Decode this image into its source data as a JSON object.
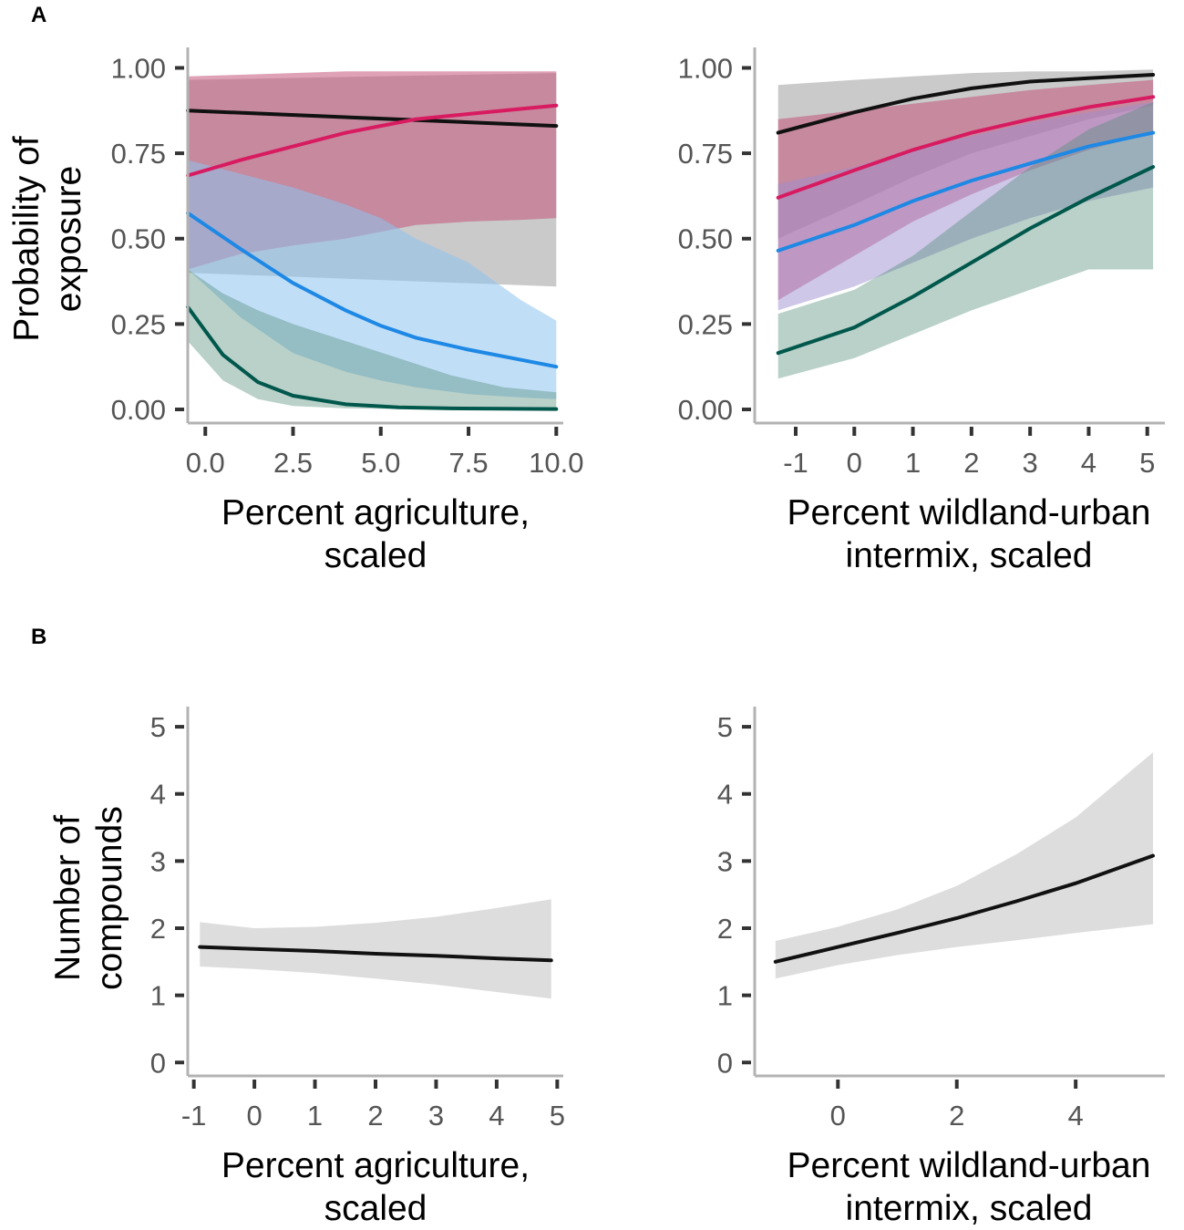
{
  "panel_labels": [
    "A",
    "B"
  ],
  "colors": {
    "black_series": "#111111",
    "pink_series": "#d81b60",
    "blue_series": "#1e88e5",
    "green_series": "#00574b",
    "axis": "#b3b3b3",
    "tick_label": "#555555",
    "ribbon_gray": "#bdbdbd"
  },
  "chart_data": [
    {
      "panel": "A",
      "type": "line",
      "ylabel": "Probability of exposure",
      "ylabel_lines": [
        "Probability of",
        "exposure"
      ],
      "xlabel": "Percent agriculture, scaled",
      "xlabel_lines": [
        "Percent agriculture,",
        "scaled"
      ],
      "xlim": [
        -0.5,
        10.2
      ],
      "ylim": [
        -0.04,
        1.06
      ],
      "x_ticks": [
        0,
        2.5,
        5,
        7.5,
        10
      ],
      "x_tick_labels": [
        "0.0",
        "2.5",
        "5.0",
        "7.5",
        "10.0"
      ],
      "y_ticks": [
        0,
        0.25,
        0.5,
        0.75,
        1
      ],
      "y_tick_labels": [
        "0.00",
        "0.25",
        "0.50",
        "0.75",
        "1.00"
      ],
      "grid": false,
      "series": [
        {
          "name": "gray",
          "color": "#111111",
          "band_color": "#bdbdbd",
          "band_opacity": 0.8,
          "x": [
            -0.5,
            10
          ],
          "y": [
            0.875,
            0.83
          ],
          "lower": [
            0.4,
            0.36
          ],
          "upper": [
            0.965,
            0.985
          ]
        },
        {
          "name": "pink",
          "color": "#d81b60",
          "band_color": "#c2547a",
          "band_opacity": 0.55,
          "x": [
            -0.5,
            1,
            2.5,
            4,
            5,
            6,
            7.5,
            9,
            10
          ],
          "y": [
            0.685,
            0.73,
            0.77,
            0.81,
            0.83,
            0.85,
            0.865,
            0.88,
            0.89
          ],
          "lower": [
            0.41,
            0.455,
            0.48,
            0.5,
            0.52,
            0.54,
            0.55,
            0.555,
            0.56
          ],
          "upper": [
            0.975,
            0.98,
            0.985,
            0.99,
            0.99,
            0.99,
            0.99,
            0.99,
            0.99
          ]
        },
        {
          "name": "blue",
          "color": "#1e88e5",
          "band_color": "#8ec2f0",
          "band_opacity": 0.55,
          "x": [
            -0.5,
            1,
            2.5,
            4,
            5,
            6,
            7.5,
            9,
            10
          ],
          "y": [
            0.575,
            0.47,
            0.37,
            0.29,
            0.245,
            0.21,
            0.175,
            0.145,
            0.125
          ],
          "lower": [
            0.41,
            0.27,
            0.165,
            0.11,
            0.085,
            0.065,
            0.045,
            0.035,
            0.03
          ],
          "upper": [
            0.73,
            0.69,
            0.65,
            0.6,
            0.56,
            0.5,
            0.43,
            0.32,
            0.26
          ]
        },
        {
          "name": "green",
          "color": "#00574b",
          "band_color": "#4f8c78",
          "band_opacity": 0.4,
          "x": [
            -0.5,
            0.5,
            1.5,
            2.5,
            4,
            5.5,
            7,
            8.5,
            10
          ],
          "y": [
            0.3,
            0.16,
            0.08,
            0.04,
            0.015,
            0.006,
            0.003,
            0.002,
            0.001
          ],
          "lower": [
            0.2,
            0.085,
            0.03,
            0.01,
            0.003,
            0.001,
            0.0,
            0.0,
            0.0
          ],
          "upper": [
            0.41,
            0.34,
            0.29,
            0.25,
            0.2,
            0.15,
            0.1,
            0.065,
            0.05
          ]
        }
      ]
    },
    {
      "panel": "A",
      "type": "line",
      "ylabel": "",
      "xlabel": "Percent wildland-urban intermix, scaled",
      "xlabel_lines": [
        "Percent wildland-urban",
        "intermix, scaled"
      ],
      "xlim": [
        -1.7,
        5.3
      ],
      "ylim": [
        -0.04,
        1.06
      ],
      "x_ticks": [
        -1,
        0,
        1,
        2,
        3,
        4,
        5
      ],
      "x_tick_labels": [
        "-1",
        "0",
        "1",
        "2",
        "3",
        "4",
        "5"
      ],
      "y_ticks": [
        0,
        0.25,
        0.5,
        0.75,
        1
      ],
      "y_tick_labels": [
        "0.00",
        "0.25",
        "0.50",
        "0.75",
        "1.00"
      ],
      "grid": false,
      "series": [
        {
          "name": "gray",
          "color": "#111111",
          "band_color": "#bdbdbd",
          "band_opacity": 0.8,
          "x": [
            -1.3,
            0,
            1,
            2,
            3,
            4,
            5.1
          ],
          "y": [
            0.81,
            0.87,
            0.91,
            0.94,
            0.96,
            0.97,
            0.98
          ],
          "lower": [
            0.5,
            0.6,
            0.68,
            0.75,
            0.8,
            0.85,
            0.89
          ],
          "upper": [
            0.95,
            0.965,
            0.975,
            0.985,
            0.99,
            0.99,
            0.995
          ]
        },
        {
          "name": "pink",
          "color": "#d81b60",
          "band_color": "#c2547a",
          "band_opacity": 0.55,
          "x": [
            -1.3,
            0,
            1,
            2,
            3,
            4,
            5.1
          ],
          "y": [
            0.62,
            0.7,
            0.76,
            0.81,
            0.85,
            0.885,
            0.915
          ],
          "lower": [
            0.32,
            0.45,
            0.55,
            0.63,
            0.7,
            0.76,
            0.81
          ],
          "upper": [
            0.85,
            0.875,
            0.895,
            0.915,
            0.935,
            0.95,
            0.965
          ]
        },
        {
          "name": "blue",
          "color": "#1e88e5",
          "band_color": "#9d8fcf",
          "band_opacity": 0.5,
          "x": [
            -1.3,
            0,
            1,
            2,
            3,
            4,
            5.1
          ],
          "y": [
            0.465,
            0.54,
            0.61,
            0.67,
            0.72,
            0.77,
            0.81
          ],
          "lower": [
            0.29,
            0.36,
            0.43,
            0.5,
            0.56,
            0.61,
            0.65
          ],
          "upper": [
            0.66,
            0.71,
            0.76,
            0.8,
            0.84,
            0.87,
            0.9
          ]
        },
        {
          "name": "green",
          "color": "#00574b",
          "band_color": "#4f8c78",
          "band_opacity": 0.4,
          "x": [
            -1.3,
            0,
            1,
            2,
            3,
            4,
            5.1
          ],
          "y": [
            0.165,
            0.24,
            0.33,
            0.43,
            0.53,
            0.62,
            0.71
          ],
          "lower": [
            0.09,
            0.15,
            0.22,
            0.29,
            0.35,
            0.41,
            0.41
          ],
          "upper": [
            0.28,
            0.35,
            0.45,
            0.58,
            0.71,
            0.82,
            0.9
          ]
        }
      ]
    },
    {
      "panel": "B",
      "type": "line",
      "ylabel": "Number of compounds",
      "ylabel_lines": [
        "Number of",
        "compounds"
      ],
      "xlabel": "Percent agriculture, scaled",
      "xlabel_lines": [
        "Percent agriculture,",
        "scaled"
      ],
      "xlim": [
        -1.1,
        5.1
      ],
      "ylim": [
        -0.2,
        5.3
      ],
      "x_ticks": [
        -1,
        0,
        1,
        2,
        3,
        4,
        5
      ],
      "x_tick_labels": [
        "-1",
        "0",
        "1",
        "2",
        "3",
        "4",
        "5"
      ],
      "y_ticks": [
        0,
        1,
        2,
        3,
        4,
        5
      ],
      "y_tick_labels": [
        "0",
        "1",
        "2",
        "3",
        "4",
        "5"
      ],
      "grid": false,
      "series": [
        {
          "name": "mean",
          "color": "#111111",
          "band_color": "#d9d9d9",
          "band_opacity": 0.9,
          "x": [
            -0.9,
            0,
            1,
            2,
            3,
            4,
            4.9
          ],
          "y": [
            1.72,
            1.69,
            1.66,
            1.62,
            1.59,
            1.55,
            1.52
          ],
          "lower": [
            1.43,
            1.39,
            1.33,
            1.25,
            1.16,
            1.05,
            0.95
          ],
          "upper": [
            2.09,
            2.0,
            2.02,
            2.08,
            2.17,
            2.3,
            2.43
          ]
        }
      ]
    },
    {
      "panel": "B",
      "type": "line",
      "ylabel": "",
      "xlabel": "Percent wildland-urban intermix, scaled",
      "xlabel_lines": [
        "Percent wildland-urban",
        "intermix, scaled"
      ],
      "xlim": [
        -1.4,
        5.5
      ],
      "ylim": [
        -0.2,
        5.3
      ],
      "x_ticks": [
        0,
        2,
        4
      ],
      "x_tick_labels": [
        "0",
        "2",
        "4"
      ],
      "y_ticks": [
        0,
        1,
        2,
        3,
        4,
        5
      ],
      "y_tick_labels": [
        "0",
        "1",
        "2",
        "3",
        "4",
        "5"
      ],
      "grid": false,
      "series": [
        {
          "name": "mean",
          "color": "#111111",
          "band_color": "#d9d9d9",
          "band_opacity": 0.9,
          "x": [
            -1.05,
            0,
            1,
            2,
            3,
            4,
            5.3
          ],
          "y": [
            1.5,
            1.72,
            1.93,
            2.15,
            2.4,
            2.67,
            3.08
          ],
          "lower": [
            1.25,
            1.45,
            1.6,
            1.72,
            1.82,
            1.93,
            2.06
          ],
          "upper": [
            1.81,
            2.02,
            2.28,
            2.63,
            3.1,
            3.65,
            4.62
          ]
        }
      ]
    }
  ]
}
